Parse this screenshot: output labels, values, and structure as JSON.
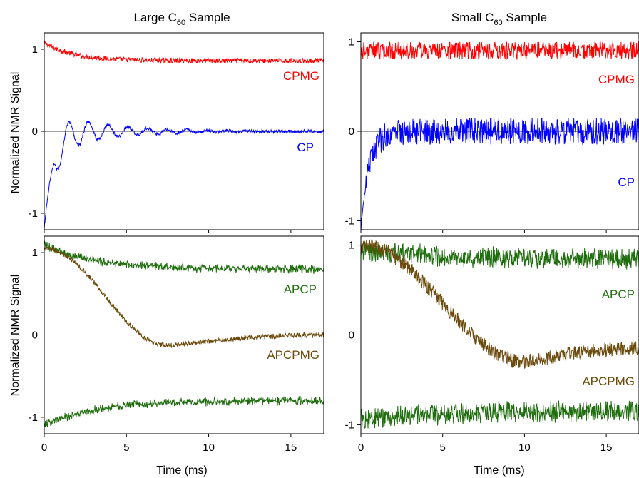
{
  "figure": {
    "titles": {
      "left_main": "Large C",
      "left_sub": "60",
      "left_rest": " Sample",
      "right_main": "Small C",
      "right_sub": "60",
      "right_rest": " Sample"
    },
    "ylabel": "Normalized NMR Signal",
    "xlabel": "Time (ms)"
  },
  "chart_data": [
    {
      "type": "line",
      "panel": "large-top",
      "xlim": [
        0,
        17
      ],
      "ylim": [
        -1.2,
        1.2
      ],
      "x_ticks": [
        0,
        5,
        10,
        15
      ],
      "y_ticks": [
        -1,
        0,
        1
      ],
      "y_tick_labels": [
        "-1",
        "0",
        "1"
      ],
      "series": [
        {
          "name": "CPMG",
          "color": "#ff0000",
          "model": "decay",
          "start": 1.08,
          "end": 0.86,
          "tau": 1.8,
          "noise": 0.03
        },
        {
          "name": "CP",
          "color": "#0000ff",
          "model": "oscillating-markers",
          "start": -1.2,
          "tau": 1.5,
          "osc_amp": 0.3,
          "osc_period": 1.2,
          "noise": 0.02
        }
      ],
      "labels": [
        "CPMG",
        "CP"
      ]
    },
    {
      "type": "line",
      "panel": "small-top",
      "xlim": [
        0,
        17
      ],
      "ylim": [
        -1.1,
        1.1
      ],
      "x_ticks": [
        0,
        5,
        10,
        15
      ],
      "y_ticks": [
        -1,
        0,
        1
      ],
      "y_tick_labels": [
        "-1",
        "0",
        "1"
      ],
      "series": [
        {
          "name": "CPMG",
          "color": "#ff0000",
          "model": "noisy-flat",
          "level": 0.9,
          "noise": 0.1
        },
        {
          "name": "CP",
          "color": "#0000ff",
          "model": "noisy-rise",
          "start": -1.1,
          "tau": 0.5,
          "noise": 0.15
        }
      ],
      "labels": [
        "CPMG",
        "CP"
      ]
    },
    {
      "type": "line",
      "panel": "large-bottom",
      "xlim": [
        0,
        17
      ],
      "ylim": [
        -1.2,
        1.2
      ],
      "x_ticks": [
        0,
        5,
        10,
        15
      ],
      "x_tick_labels": [
        "0",
        "5",
        "10",
        "15"
      ],
      "y_ticks": [
        -1,
        0,
        1
      ],
      "y_tick_labels": [
        "-1",
        "0",
        "1"
      ],
      "series": [
        {
          "name": "APCP",
          "color": "#1f6e0e",
          "model": "envelope",
          "start": 1.1,
          "end": 0.8,
          "tau": 3,
          "noise": 0.03
        },
        {
          "name": "APCPMG",
          "color": "#6b4a0c",
          "model": "dip",
          "start": 1.05,
          "min": -0.13,
          "min_x": 7.5,
          "end": 0.0,
          "noise": 0.03
        }
      ],
      "labels": [
        "APCP",
        "APCPMG"
      ]
    },
    {
      "type": "line",
      "panel": "small-bottom",
      "xlim": [
        0,
        17
      ],
      "ylim": [
        -1.1,
        1.1
      ],
      "x_ticks": [
        0,
        5,
        10,
        15
      ],
      "x_tick_labels": [
        "0",
        "5",
        "10",
        "15"
      ],
      "y_ticks": [
        -1,
        0,
        1
      ],
      "y_tick_labels": [
        "-1",
        "0",
        "1"
      ],
      "series": [
        {
          "name": "APCP",
          "color": "#1f6e0e",
          "model": "envelope",
          "start": 0.95,
          "end": 0.85,
          "tau": 4,
          "noise": 0.1
        },
        {
          "name": "APCPMG",
          "color": "#6b4a0c",
          "model": "dip",
          "start": 1.0,
          "min": -0.3,
          "min_x": 10,
          "end": -0.15,
          "noise": 0.08
        }
      ],
      "labels": [
        "APCP",
        "APCPMG"
      ]
    }
  ]
}
